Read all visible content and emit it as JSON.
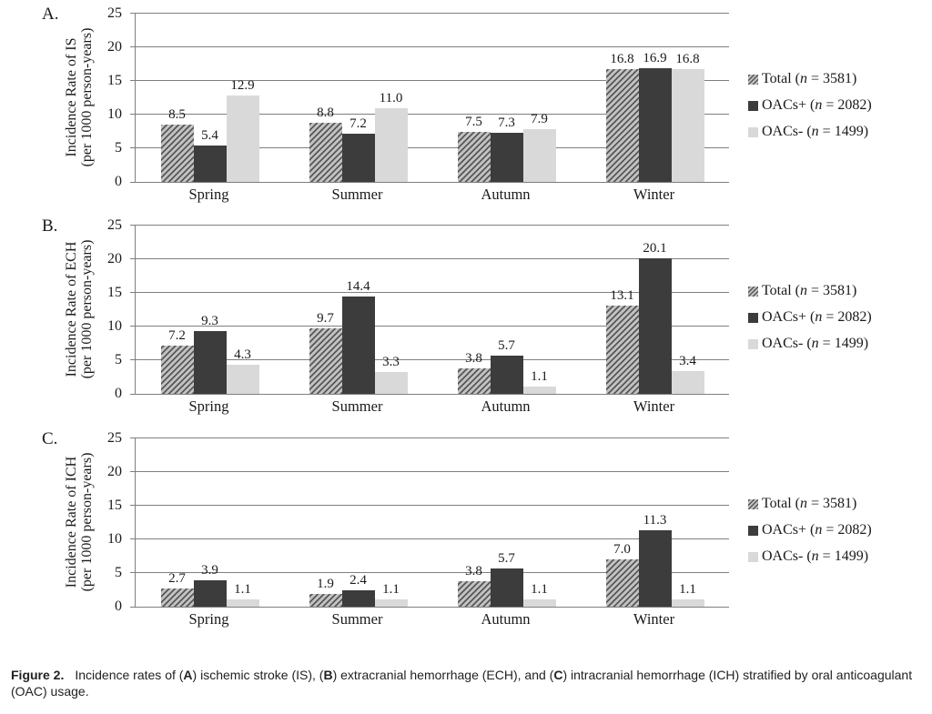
{
  "caption": {
    "label": "Figure 2.",
    "segments": [
      {
        "text": "Incidence rates of (",
        "bold": false
      },
      {
        "text": "A",
        "bold": true
      },
      {
        "text": ") ischemic stroke (IS), (",
        "bold": false
      },
      {
        "text": "B",
        "bold": true
      },
      {
        "text": ") extracranial hemorrhage (ECH), and (",
        "bold": false
      },
      {
        "text": "C",
        "bold": true
      },
      {
        "text": ") intracranial hemorrhage (ICH) stratified by oral anticoagulant (OAC) usage.",
        "bold": false
      }
    ]
  },
  "legend": {
    "items": [
      {
        "swatch": "hatched",
        "pre": "Total (",
        "n_var": "n",
        "post": " = 3581)"
      },
      {
        "swatch": "dark",
        "pre": "OACs+ (",
        "n_var": "n",
        "post": " = 2082)"
      },
      {
        "swatch": "light",
        "pre": "OACs- (",
        "n_var": "n",
        "post": " = 1499)"
      }
    ]
  },
  "colors": {
    "dark_bar": "#3c3c3c",
    "light_bar": "#d9d9d9",
    "hatch_line": "#585858",
    "hatch_bg": "#c2c2c2",
    "gridline": "#7f7f7f"
  },
  "chart_data": [
    {
      "type": "bar",
      "panel": "A.",
      "ylabel": [
        "Incidence Rate of IS",
        "(per 1000 person-years)"
      ],
      "categories": [
        "Spring",
        "Summer",
        "Autumn",
        "Winter"
      ],
      "series": [
        {
          "name": "Total (n = 3581)",
          "swatch": "hatched",
          "values": [
            8.5,
            8.8,
            7.5,
            16.8
          ]
        },
        {
          "name": "OACs+ (n = 2082)",
          "swatch": "dark",
          "values": [
            5.4,
            7.2,
            7.3,
            16.9
          ]
        },
        {
          "name": "OACs- (n = 1499)",
          "swatch": "light",
          "values": [
            12.9,
            11.0,
            7.9,
            16.8
          ]
        }
      ],
      "ylim": [
        0,
        25
      ],
      "yticks": [
        0,
        5,
        10,
        15,
        20,
        25
      ],
      "grid": true,
      "legend_position": "right"
    },
    {
      "type": "bar",
      "panel": "B.",
      "ylabel": [
        "Incidence Rate of ECH",
        "(per 1000 person-years)"
      ],
      "categories": [
        "Spring",
        "Summer",
        "Autumn",
        "Winter"
      ],
      "series": [
        {
          "name": "Total (n = 3581)",
          "swatch": "hatched",
          "values": [
            7.2,
            9.7,
            3.8,
            13.1
          ]
        },
        {
          "name": "OACs+ (n = 2082)",
          "swatch": "dark",
          "values": [
            9.3,
            14.4,
            5.7,
            20.1
          ]
        },
        {
          "name": "OACs- (n = 1499)",
          "swatch": "light",
          "values": [
            4.3,
            3.3,
            1.1,
            3.4
          ]
        }
      ],
      "ylim": [
        0,
        25
      ],
      "yticks": [
        0,
        5,
        10,
        15,
        20,
        25
      ],
      "grid": true,
      "legend_position": "right"
    },
    {
      "type": "bar",
      "panel": "C.",
      "ylabel": [
        "Incidence Rate of ICH",
        "(per 1000 person-years)"
      ],
      "categories": [
        "Spring",
        "Summer",
        "Autumn",
        "Winter"
      ],
      "series": [
        {
          "name": "Total (n = 3581)",
          "swatch": "hatched",
          "values": [
            2.7,
            1.9,
            3.8,
            7.0
          ]
        },
        {
          "name": "OACs+ (n = 2082)",
          "swatch": "dark",
          "values": [
            3.9,
            2.4,
            5.7,
            11.3
          ]
        },
        {
          "name": "OACs- (n = 1499)",
          "swatch": "light",
          "values": [
            1.1,
            1.1,
            1.1,
            1.1
          ]
        }
      ],
      "ylim": [
        0,
        25
      ],
      "yticks": [
        0,
        5,
        10,
        15,
        20,
        25
      ],
      "grid": true,
      "legend_position": "right"
    }
  ]
}
